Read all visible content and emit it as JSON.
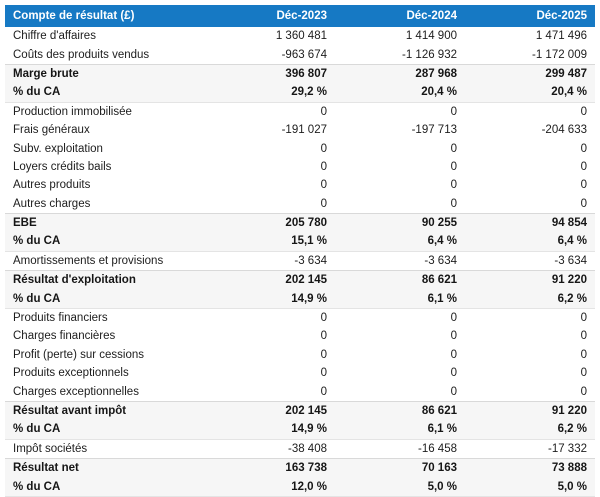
{
  "colors": {
    "header_bg": "#1679c4",
    "header_text": "#ffffff",
    "total_row_bg": "#f6f6f6",
    "body_text": "#1d1d1d",
    "divider": "#d9d9d9"
  },
  "chart_data": {
    "type": "table",
    "title": "Compte de résultat (£)",
    "columns": [
      "Déc-2023",
      "Déc-2024",
      "Déc-2025"
    ],
    "rows": [
      {
        "label": "Chiffre d'affaires",
        "values": [
          "1 360 481",
          "1 414 900",
          "1 471 496"
        ],
        "emphasis": false
      },
      {
        "label": "Coûts des produits vendus",
        "values": [
          "-963 674",
          "-1 126 932",
          "-1 172 009"
        ],
        "emphasis": false
      },
      {
        "label": "Marge brute",
        "values": [
          "396 807",
          "287 968",
          "299 487"
        ],
        "emphasis": true,
        "group_start": true
      },
      {
        "label": "% du CA",
        "values": [
          "29,2 %",
          "20,4 %",
          "20,4 %"
        ],
        "emphasis": true,
        "group_end": true
      },
      {
        "label": "Production immobilisée",
        "values": [
          "0",
          "0",
          "0"
        ],
        "emphasis": false
      },
      {
        "label": "Frais généraux",
        "values": [
          "-191 027",
          "-197 713",
          "-204 633"
        ],
        "emphasis": false
      },
      {
        "label": "Subv. exploitation",
        "values": [
          "0",
          "0",
          "0"
        ],
        "emphasis": false
      },
      {
        "label": "Loyers crédits bails",
        "values": [
          "0",
          "0",
          "0"
        ],
        "emphasis": false
      },
      {
        "label": "Autres produits",
        "values": [
          "0",
          "0",
          "0"
        ],
        "emphasis": false
      },
      {
        "label": "Autres charges",
        "values": [
          "0",
          "0",
          "0"
        ],
        "emphasis": false
      },
      {
        "label": "EBE",
        "values": [
          "205 780",
          "90 255",
          "94 854"
        ],
        "emphasis": true,
        "group_start": true
      },
      {
        "label": "% du CA",
        "values": [
          "15,1 %",
          "6,4 %",
          "6,4 %"
        ],
        "emphasis": true,
        "group_end": true
      },
      {
        "label": "Amortissements et provisions",
        "values": [
          "-3 634",
          "-3 634",
          "-3 634"
        ],
        "emphasis": false
      },
      {
        "label": "Résultat d'exploitation",
        "values": [
          "202 145",
          "86 621",
          "91 220"
        ],
        "emphasis": true,
        "group_start": true
      },
      {
        "label": "% du CA",
        "values": [
          "14,9 %",
          "6,1 %",
          "6,2 %"
        ],
        "emphasis": true,
        "group_end": true
      },
      {
        "label": "Produits financiers",
        "values": [
          "0",
          "0",
          "0"
        ],
        "emphasis": false
      },
      {
        "label": "Charges financières",
        "values": [
          "0",
          "0",
          "0"
        ],
        "emphasis": false
      },
      {
        "label": "Profit (perte) sur cessions",
        "values": [
          "0",
          "0",
          "0"
        ],
        "emphasis": false
      },
      {
        "label": "Produits exceptionnels",
        "values": [
          "0",
          "0",
          "0"
        ],
        "emphasis": false
      },
      {
        "label": "Charges exceptionnelles",
        "values": [
          "0",
          "0",
          "0"
        ],
        "emphasis": false
      },
      {
        "label": "Résultat avant impôt",
        "values": [
          "202 145",
          "86 621",
          "91 220"
        ],
        "emphasis": true,
        "group_start": true
      },
      {
        "label": "% du CA",
        "values": [
          "14,9 %",
          "6,1 %",
          "6,2 %"
        ],
        "emphasis": true,
        "group_end": true
      },
      {
        "label": "Impôt sociétés",
        "values": [
          "-38 408",
          "-16 458",
          "-17 332"
        ],
        "emphasis": false
      },
      {
        "label": "Résultat net",
        "values": [
          "163 738",
          "70 163",
          "73 888"
        ],
        "emphasis": true,
        "group_start": true
      },
      {
        "label": "% du CA",
        "values": [
          "12,0 %",
          "5,0 %",
          "5,0 %"
        ],
        "emphasis": true,
        "group_end": true
      }
    ]
  }
}
